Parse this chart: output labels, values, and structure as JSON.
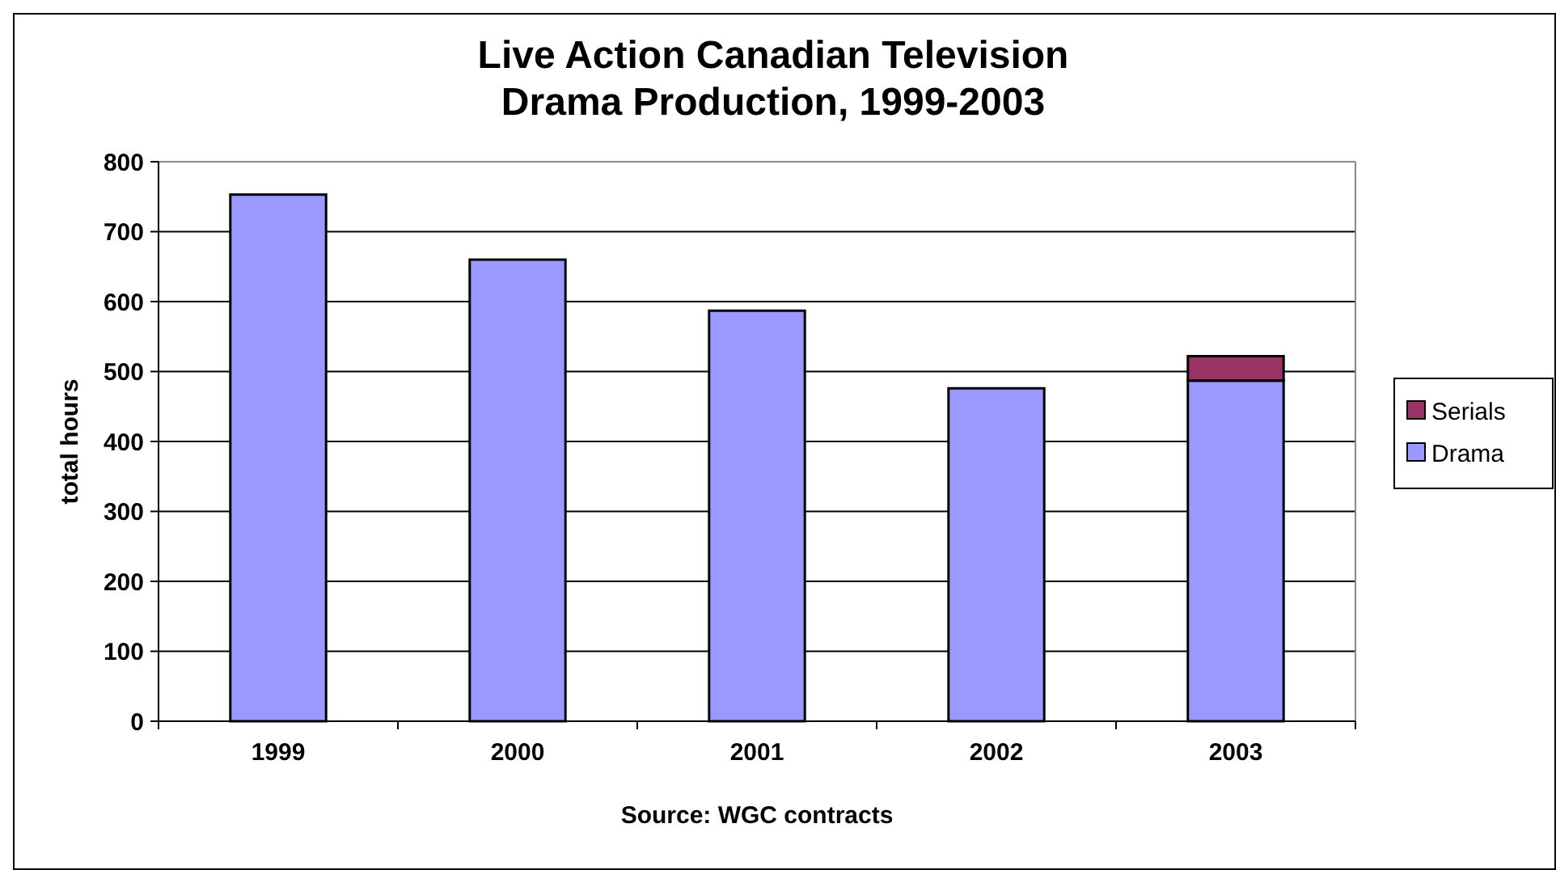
{
  "chart_data": {
    "type": "bar",
    "title": "Live Action Canadian Television Drama Production, 1999-2003",
    "xlabel": "Source: WGC contracts",
    "ylabel": "total hours",
    "categories": [
      "1999",
      "2000",
      "2001",
      "2002",
      "2003"
    ],
    "series": [
      {
        "name": "Drama",
        "color": "#9999ff",
        "values": [
          753,
          660,
          587,
          476,
          487
        ]
      },
      {
        "name": "Serials",
        "color": "#993366",
        "values": [
          null,
          null,
          null,
          null,
          35
        ]
      }
    ],
    "stacked": true,
    "ylim": [
      0,
      800
    ],
    "yticks": [
      0,
      100,
      200,
      300,
      400,
      500,
      600,
      700,
      800
    ],
    "grid": "y",
    "legend": "right"
  }
}
